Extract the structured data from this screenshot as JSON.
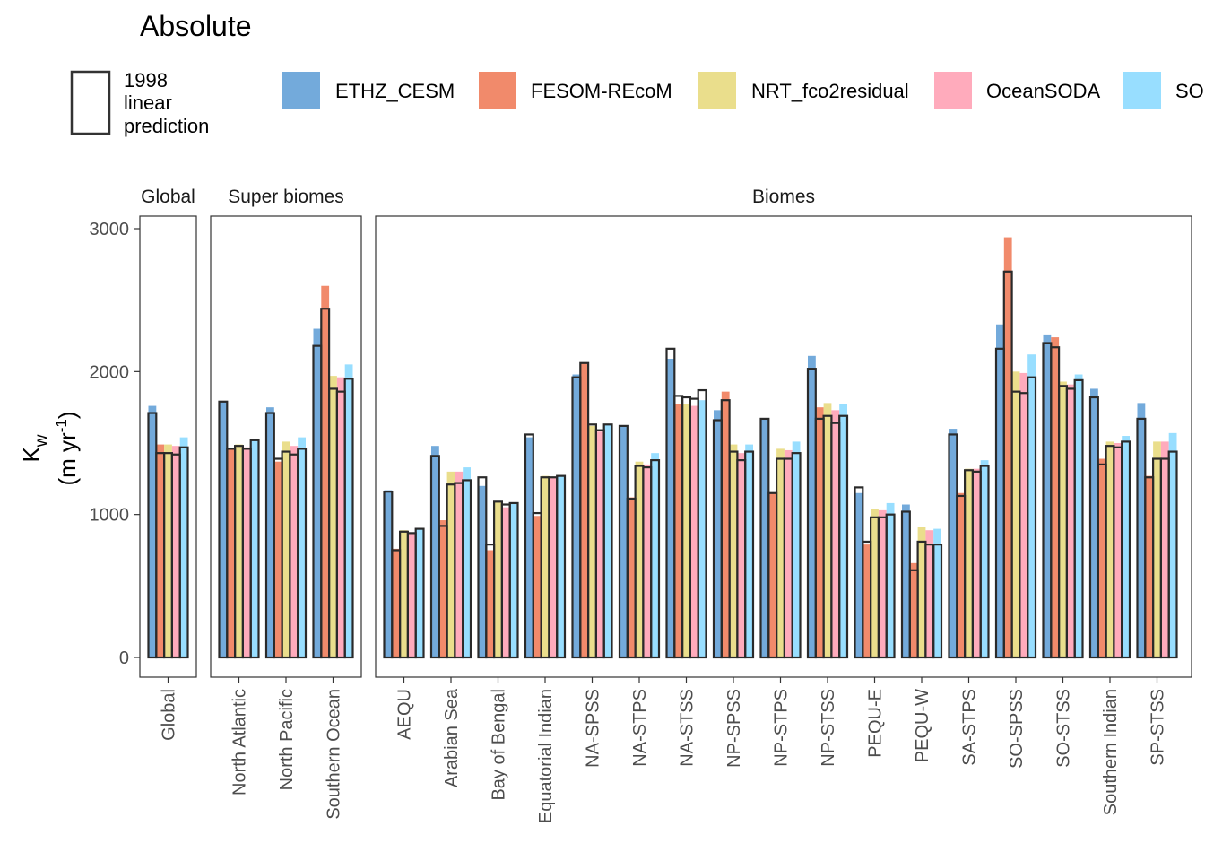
{
  "title": "Absolute",
  "legend": {
    "outline_label_lines": [
      "1998",
      "linear",
      "prediction"
    ],
    "fill_items": [
      {
        "label": "ETHZ_CESM",
        "color": "#5B9BD5"
      },
      {
        "label": "FESOM-REcoM",
        "color": "#EE7651"
      },
      {
        "label": "NRT_fco2residual",
        "color": "#E6D878"
      },
      {
        "label": "OceanSODA",
        "color": "#FF9CB0"
      },
      {
        "label": "SO",
        "color": "#86D8FF"
      }
    ]
  },
  "y_axis": {
    "label_main": "K",
    "label_sub": "w",
    "label_unit_pre": "(m yr",
    "label_unit_sup": "-1",
    "label_unit_post": ")",
    "ticks": [
      0,
      1000,
      2000,
      3000
    ],
    "tick_labels": [
      "0",
      "1000",
      "2000",
      "3000"
    ]
  },
  "chart_data": {
    "type": "bar",
    "ylim": [
      -140,
      3080
    ],
    "series_names": [
      "ETHZ_CESM",
      "FESOM-REcoM",
      "NRT_fco2residual",
      "OceanSODA",
      "SO"
    ],
    "series_colors": [
      "#5B9BD5",
      "#EE7651",
      "#E6D878",
      "#FF9CB0",
      "#86D8FF"
    ],
    "panels": [
      {
        "strip": "Global",
        "categories": [
          {
            "name": "Global",
            "absolute": [
              1760,
              1490,
              1490,
              1480,
              1540
            ],
            "prediction_1998": [
              1710,
              1430,
              1430,
              1420,
              1470
            ]
          }
        ]
      },
      {
        "strip": "Super biomes",
        "categories": [
          {
            "name": "North Atlantic",
            "absolute": [
              1790,
              1460,
              1490,
              1470,
              1520
            ],
            "prediction_1998": [
              1790,
              1460,
              1480,
              1460,
              1520
            ]
          },
          {
            "name": "North Pacific",
            "absolute": [
              1750,
              1370,
              1510,
              1480,
              1540
            ],
            "prediction_1998": [
              1710,
              1390,
              1440,
              1420,
              1460
            ]
          },
          {
            "name": "Southern Ocean",
            "absolute": [
              2300,
              2600,
              1970,
              1960,
              2050
            ],
            "prediction_1998": [
              2180,
              2440,
              1880,
              1860,
              1950
            ]
          }
        ]
      },
      {
        "strip": "Biomes",
        "categories": [
          {
            "name": "AEQU",
            "absolute": [
              1170,
              760,
              890,
              870,
              900
            ],
            "prediction_1998": [
              1160,
              750,
              880,
              870,
              900
            ]
          },
          {
            "name": "Arabian Sea",
            "absolute": [
              1480,
              960,
              1300,
              1300,
              1330
            ],
            "prediction_1998": [
              1410,
              920,
              1210,
              1220,
              1240
            ]
          },
          {
            "name": "Bay of Bengal",
            "absolute": [
              1200,
              750,
              1090,
              1050,
              1080
            ],
            "prediction_1998": [
              1260,
              790,
              1090,
              1070,
              1080
            ]
          },
          {
            "name": "Equatorial Indian",
            "absolute": [
              1540,
              990,
              1270,
              1260,
              1270
            ],
            "prediction_1998": [
              1560,
              1010,
              1260,
              1260,
              1270
            ]
          },
          {
            "name": "NA-SPSS",
            "absolute": [
              1980,
              2060,
              1620,
              1580,
              1630
            ],
            "prediction_1998": [
              1960,
              2060,
              1630,
              1590,
              1630
            ]
          },
          {
            "name": "NA-STPS",
            "absolute": [
              1620,
              1120,
              1370,
              1350,
              1430
            ],
            "prediction_1998": [
              1620,
              1110,
              1340,
              1330,
              1380
            ]
          },
          {
            "name": "NA-STSS",
            "absolute": [
              2090,
              1770,
              1770,
              1760,
              1800
            ],
            "prediction_1998": [
              2160,
              1830,
              1820,
              1810,
              1870
            ]
          },
          {
            "name": "NP-SPSS",
            "absolute": [
              1730,
              1860,
              1490,
              1430,
              1490
            ],
            "prediction_1998": [
              1660,
              1800,
              1440,
              1380,
              1440
            ]
          },
          {
            "name": "NP-STPS",
            "absolute": [
              1670,
              1150,
              1460,
              1450,
              1510
            ],
            "prediction_1998": [
              1670,
              1150,
              1390,
              1390,
              1430
            ]
          },
          {
            "name": "NP-STSS",
            "absolute": [
              2110,
              1750,
              1780,
              1730,
              1770
            ],
            "prediction_1998": [
              2020,
              1670,
              1690,
              1640,
              1690
            ]
          },
          {
            "name": "PEQU-E",
            "absolute": [
              1150,
              790,
              1040,
              1030,
              1080
            ],
            "prediction_1998": [
              1190,
              810,
              980,
              980,
              1000
            ]
          },
          {
            "name": "PEQU-W",
            "absolute": [
              1070,
              660,
              910,
              890,
              900
            ],
            "prediction_1998": [
              1020,
              610,
              810,
              790,
              790
            ]
          },
          {
            "name": "SA-STPS",
            "absolute": [
              1600,
              1150,
              1320,
              1320,
              1380
            ],
            "prediction_1998": [
              1560,
              1130,
              1310,
              1300,
              1340
            ]
          },
          {
            "name": "SO-SPSS",
            "absolute": [
              2330,
              2940,
              2000,
              1990,
              2120
            ],
            "prediction_1998": [
              2160,
              2700,
              1860,
              1850,
              1960
            ]
          },
          {
            "name": "SO-STSS",
            "absolute": [
              2260,
              2240,
              1930,
              1910,
              1980
            ],
            "prediction_1998": [
              2200,
              2170,
              1900,
              1880,
              1940
            ]
          },
          {
            "name": "Southern Indian",
            "absolute": [
              1880,
              1390,
              1510,
              1500,
              1550
            ],
            "prediction_1998": [
              1820,
              1350,
              1480,
              1470,
              1510
            ]
          },
          {
            "name": "SP-STSS",
            "absolute": [
              1780,
              1270,
              1510,
              1510,
              1570
            ],
            "prediction_1998": [
              1670,
              1260,
              1390,
              1390,
              1440
            ]
          }
        ]
      }
    ]
  }
}
